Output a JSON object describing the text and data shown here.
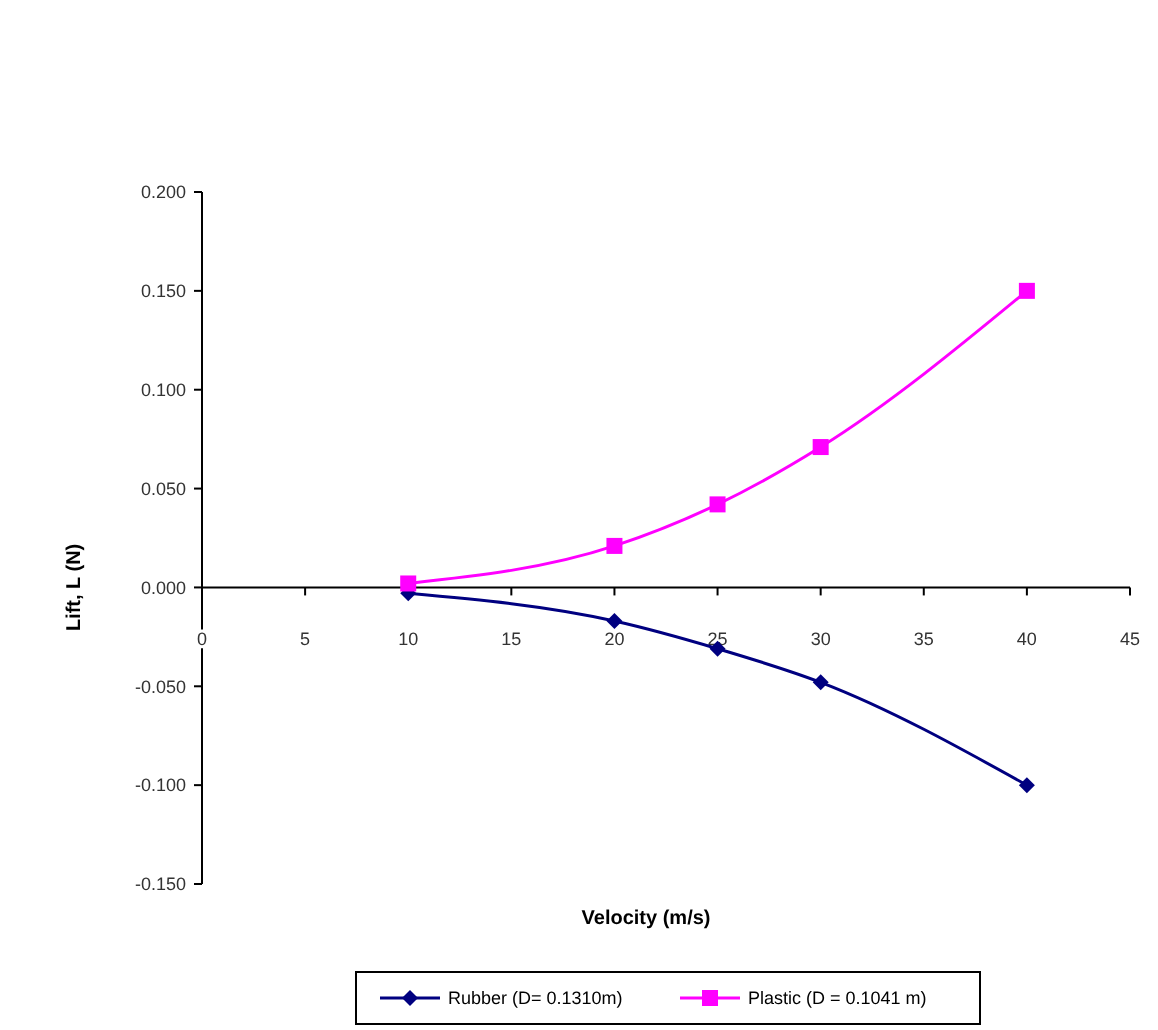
{
  "chart_data": {
    "type": "line",
    "xlabel": "Velocity (m/s)",
    "ylabel": "Lift, L (N)",
    "xlim": [
      0,
      45
    ],
    "xticks": [
      0,
      5,
      10,
      15,
      20,
      25,
      30,
      35,
      40,
      45
    ],
    "ylim": [
      -0.15,
      0.2
    ],
    "yticks": [
      {
        "value": -0.15,
        "label": "-0.150"
      },
      {
        "value": -0.1,
        "label": "-0.100"
      },
      {
        "value": -0.05,
        "label": "-0.050"
      },
      {
        "value": 0,
        "label": "0.000"
      },
      {
        "value": 0.05,
        "label": "0.050"
      },
      {
        "value": 0.1,
        "label": "0.100"
      },
      {
        "value": 0.15,
        "label": "0.150"
      },
      {
        "value": 0.2,
        "label": "0.200"
      }
    ],
    "grid": false,
    "legend": "bottom",
    "series": [
      {
        "name": "Rubber (D= 0.1310m)",
        "color": "#000080",
        "marker": "diamond",
        "x": [
          10,
          20,
          25,
          30,
          40
        ],
        "values": [
          -0.003,
          -0.017,
          -0.031,
          -0.048,
          -0.1
        ]
      },
      {
        "name": "Plastic (D = 0.1041 m)",
        "color": "#ff00ff",
        "marker": "square",
        "x": [
          10,
          20,
          25,
          30,
          40
        ],
        "values": [
          0.002,
          0.021,
          0.042,
          0.071,
          0.15
        ]
      }
    ]
  }
}
